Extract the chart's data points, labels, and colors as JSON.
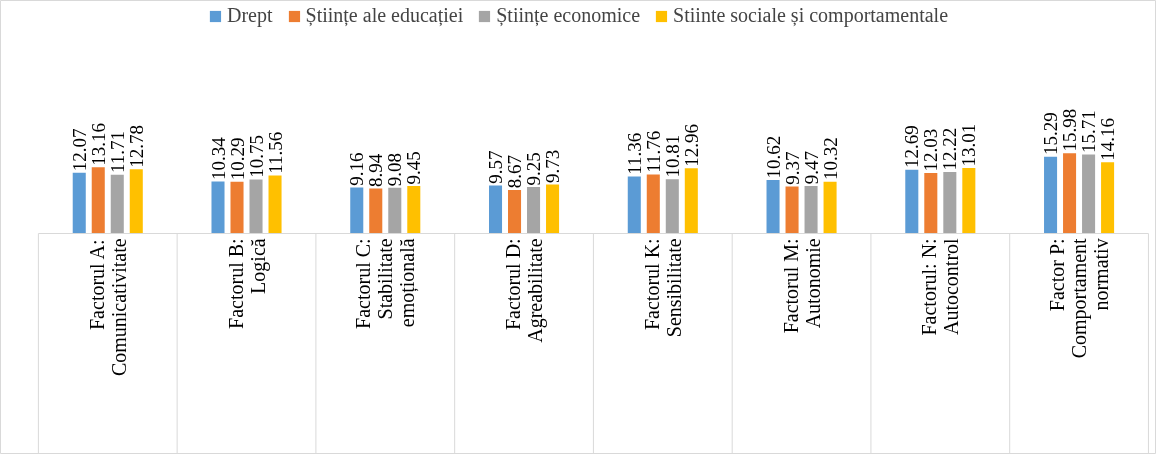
{
  "chart_data": {
    "type": "bar",
    "categories": [
      "Factorul A:\nComunicativitate",
      "Factorul B:\nLogică",
      "Factorul C:\nStabilitate\nemoțională",
      "Factorul D:\nAgreabilitate",
      "Factorul K:\nSensibilitate",
      "Factorul M:\nAutonomie",
      "Factorul: N:\nAutocontrol",
      "Factor P:\nComportament\nnormativ"
    ],
    "series": [
      {
        "name": "Drept",
        "color": "#5b9bd5",
        "values": [
          12.07,
          10.34,
          9.16,
          9.57,
          11.36,
          10.62,
          12.69,
          15.29
        ]
      },
      {
        "name": "Științe ale educației",
        "color": "#ed7d31",
        "values": [
          13.16,
          10.29,
          8.94,
          8.67,
          11.76,
          9.37,
          12.03,
          15.98
        ]
      },
      {
        "name": "Științe economice",
        "color": "#a5a5a5",
        "values": [
          11.71,
          10.75,
          9.08,
          9.25,
          10.81,
          9.47,
          12.22,
          15.71
        ]
      },
      {
        "name": "Stiinte sociale și comportamentale",
        "color": "#ffc000",
        "values": [
          12.78,
          11.56,
          9.45,
          9.73,
          12.96,
          10.32,
          13.01,
          14.16
        ]
      }
    ],
    "data_labels": true,
    "legend": "top"
  }
}
